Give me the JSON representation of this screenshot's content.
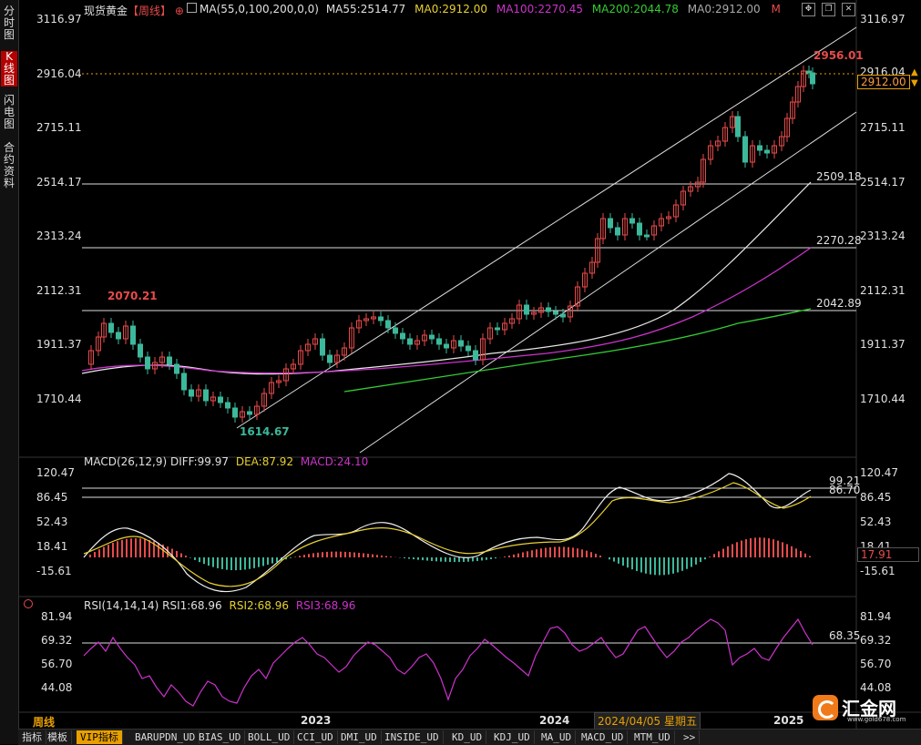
{
  "sidebar": {
    "tabs": [
      {
        "label": "分时图"
      },
      {
        "label": "K线图"
      },
      {
        "label": "闪电图"
      },
      {
        "label": "合约资料"
      }
    ]
  },
  "header": {
    "instrument": "现货黄金",
    "period": "【周线】",
    "plus_icon": "⊕",
    "ma_main": "MA(55,0,100,200,0,0)",
    "ma55": "MA55:2514.77",
    "ma0a": "MA0:2912.00",
    "ma100": "MA100:2270.45",
    "ma200": "MA200:2044.78",
    "ma0b": "MA0:2912.00",
    "m": "M"
  },
  "price_axis": {
    "ticks": [
      "3116.97",
      "2916.04",
      "2715.11",
      "2514.17",
      "2313.24",
      "2112.31",
      "1911.37",
      "1710.44"
    ],
    "current_price": "2912.00",
    "right_2916": "2916.04"
  },
  "price_annotations": {
    "high_2070": "2070.21",
    "low": "1614.67",
    "high_2956": "2956.01",
    "line_2509": "2509.18",
    "line_2270": "2270.28",
    "line_2042": "2042.89"
  },
  "macd": {
    "label": "MACD(26,12,9)",
    "diff": "DIFF:99.97",
    "dea": "DEA:87.92",
    "macd": "MACD:24.10",
    "ticks": [
      "120.47",
      "86.45",
      "52.43",
      "18.41",
      "-15.61"
    ],
    "line_a": "99.21",
    "line_b": "86.70",
    "current": "17.91"
  },
  "rsi": {
    "label": "RSI(14,14,14)",
    "rsi1": "RSI1:68.96",
    "rsi2": "RSI2:68.96",
    "rsi3": "RSI3:68.96",
    "ticks": [
      "81.94",
      "69.32",
      "56.70",
      "44.08"
    ],
    "line": "68.35"
  },
  "time_axis": {
    "period_label": "周线",
    "y2023": "2023",
    "y2024": "2024",
    "y2025": "2025",
    "crosshair_date": "2024/04/05 星期五"
  },
  "logo": {
    "text": "汇金网",
    "url": "www.gold678.com"
  },
  "bottom_tabs": [
    "指标",
    "模板",
    "VIP指标",
    "BARUPDN_UD",
    "BIAS_UD",
    "BOLL_UD",
    "CCI_UD",
    "DMI_UD",
    "INSIDE_UD",
    "KD_UD",
    "KDJ_UD",
    "MA_UD",
    "MACD_UD",
    "MTM_UD",
    ">>"
  ],
  "colors": {
    "up": "#e84b4b",
    "down": "#3cb89a",
    "ma55": "#e0e0e0",
    "ma100": "#cc33cc",
    "ma200": "#33cc33",
    "dea": "#e8d030",
    "rsi": "#cc33cc",
    "accent": "#e8a000"
  }
}
